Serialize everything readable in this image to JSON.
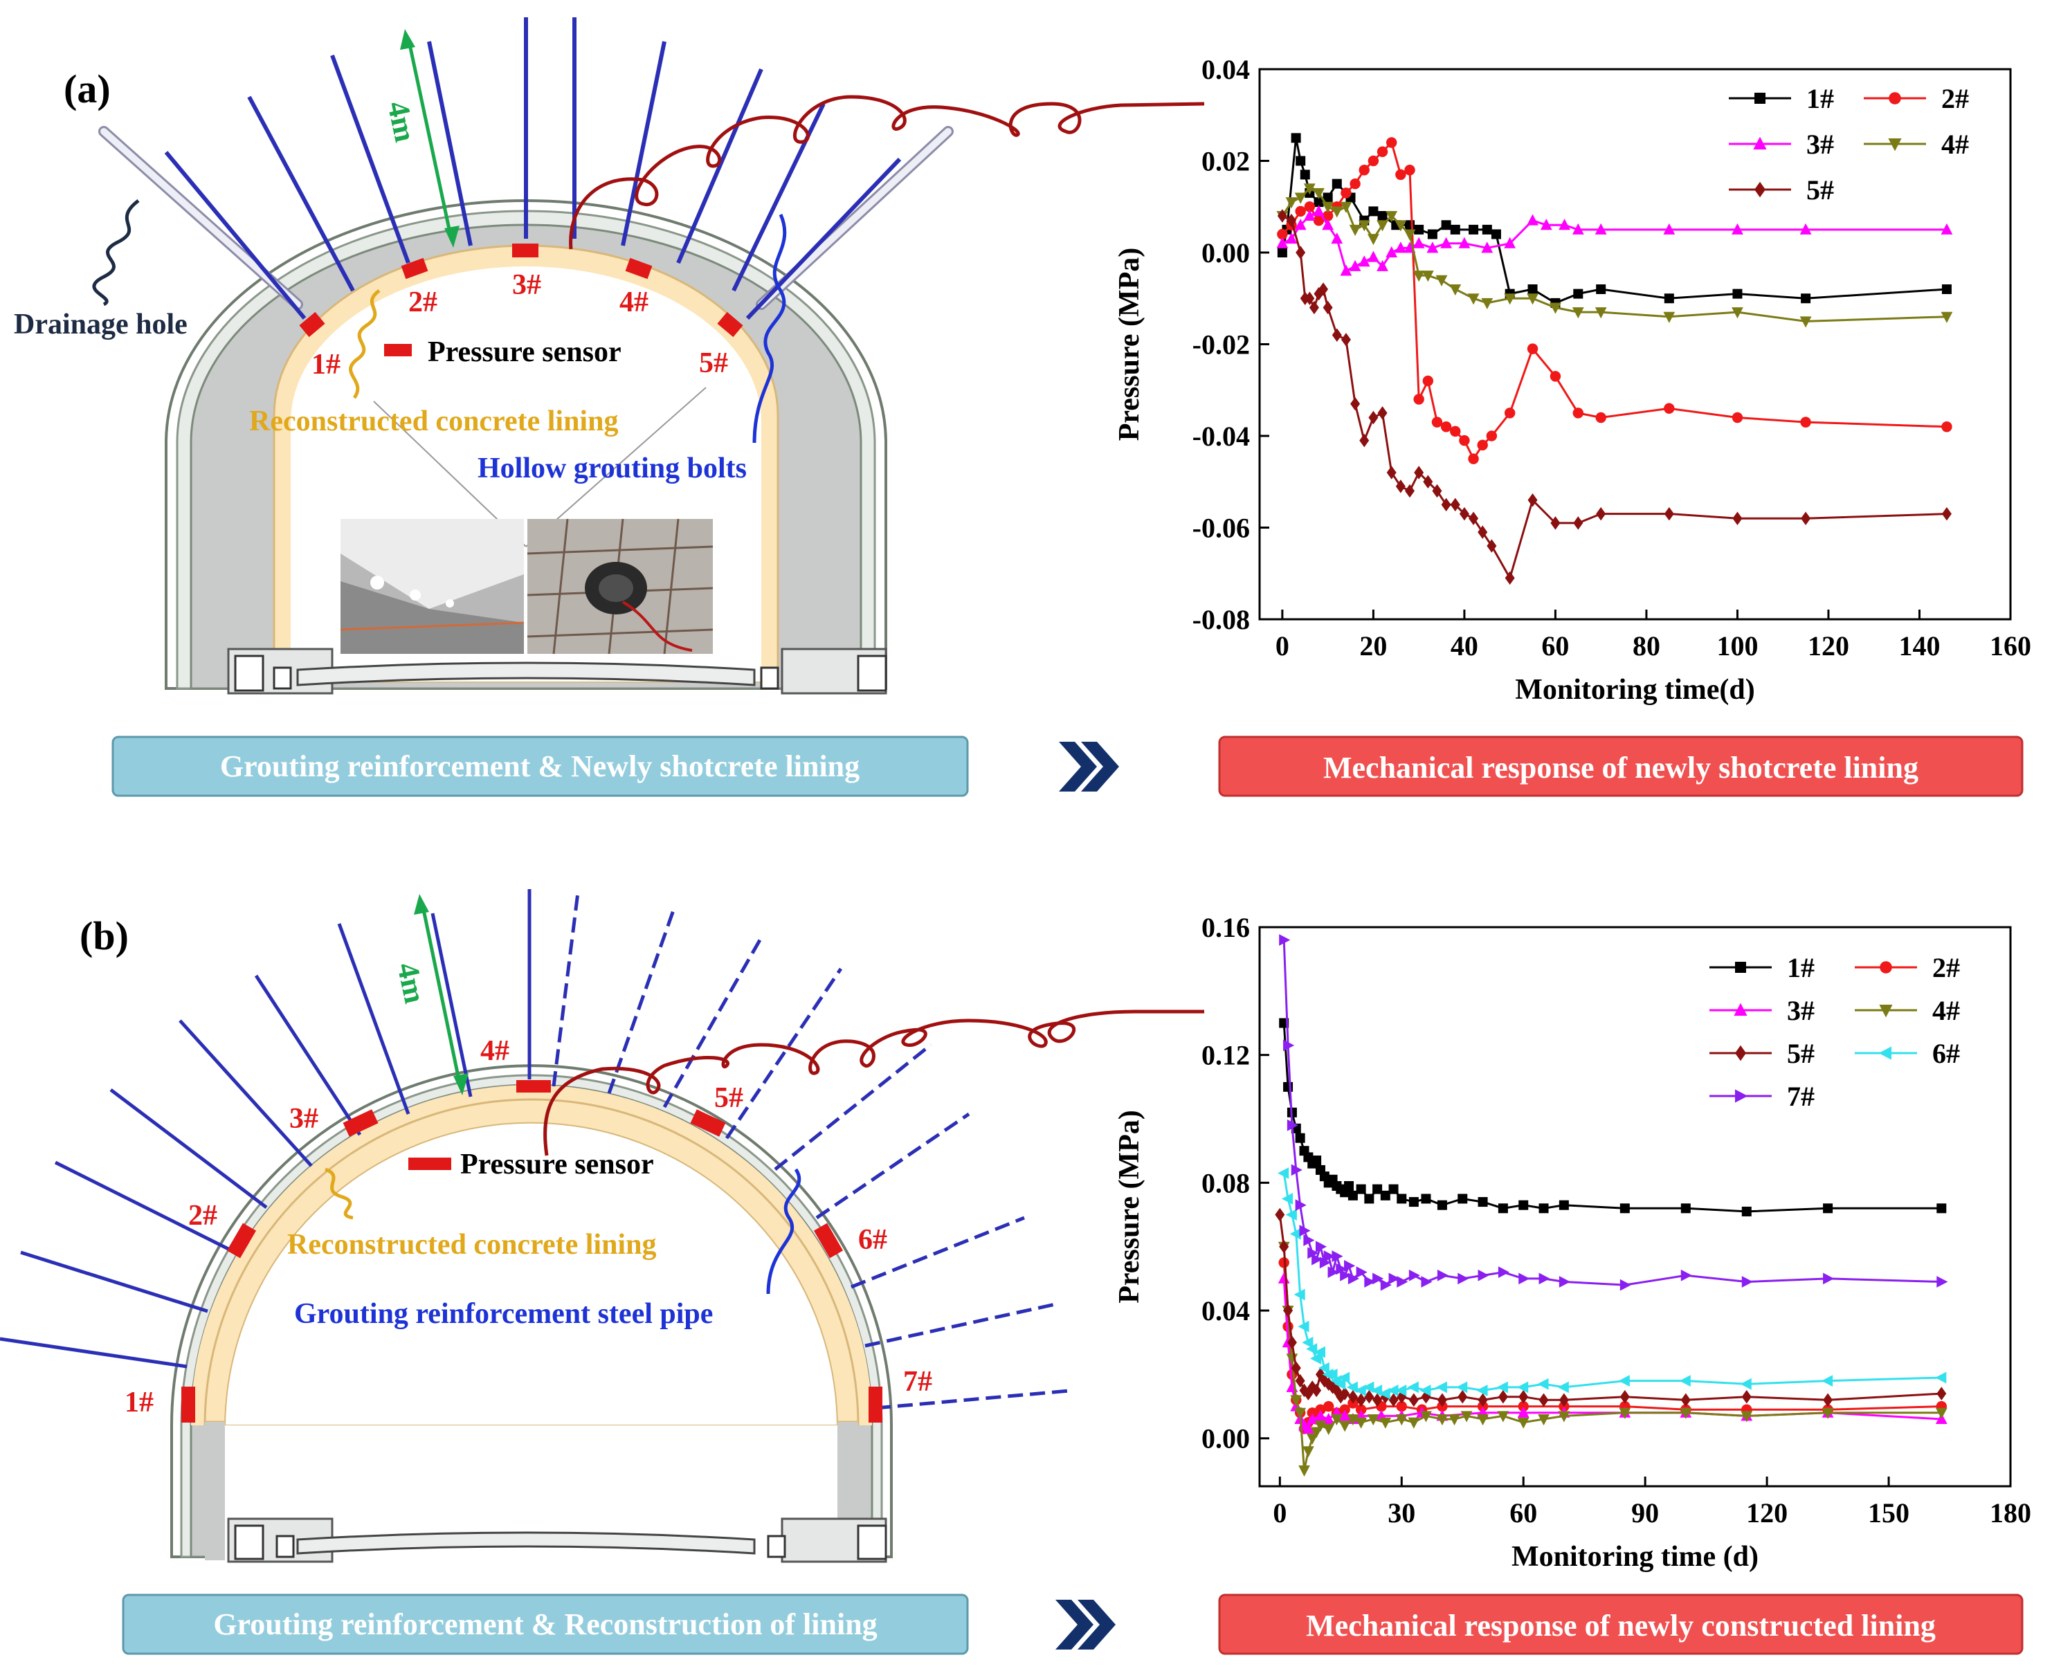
{
  "panel_a": {
    "label": "(a)",
    "diagram": {
      "length_label": "4m",
      "drainage_label": "Drainage hole",
      "sensor_label": "Pressure sensor",
      "lining_label": "Reconstructed concrete lining",
      "bolt_label": "Hollow grouting bolts",
      "sensor_ids": [
        "1#",
        "2#",
        "3#",
        "4#",
        "5#"
      ]
    },
    "left_banner": "Grouting reinforcement & Newly shotcrete lining",
    "right_banner": "Mechanical response of newly shotcrete lining"
  },
  "panel_b": {
    "label": "(b)",
    "diagram": {
      "length_label": "4m",
      "sensor_label": "Pressure sensor",
      "lining_label": "Reconstructed concrete lining",
      "pipe_label": "Grouting reinforcement steel pipe",
      "sensor_ids": [
        "1#",
        "2#",
        "3#",
        "4#",
        "5#",
        "6#",
        "7#"
      ]
    },
    "left_banner": "Grouting reinforcement & Reconstruction of lining",
    "right_banner": "Mechanical response of newly constructed lining"
  },
  "colors": {
    "banner_blue": "#93cddd",
    "banner_red": "#f05050",
    "arrow_navy": "#13306b",
    "lining": "#fce5b8",
    "bolt": "#2b2fb5",
    "wire": "#a11010",
    "green": "#1aa84c",
    "label_red": "#e01818",
    "label_gold": "#e0a81a",
    "label_blue": "#1d33d6"
  },
  "chart_data": [
    {
      "type": "line",
      "title": "",
      "xlabel": "Monitoring time(d)",
      "ylabel": "Pressure (MPa)",
      "xlim": [
        -5,
        160
      ],
      "ylim": [
        -0.08,
        0.04
      ],
      "xticks": [
        0,
        20,
        40,
        60,
        80,
        100,
        120,
        140,
        160
      ],
      "yticks": [
        -0.08,
        -0.06,
        -0.04,
        -0.02,
        0.0,
        0.02,
        0.04
      ],
      "ytick_labels": [
        "-0.08",
        "-0.06",
        "-0.04",
        "-0.02",
        "0.00",
        "0.02",
        "0.04"
      ],
      "legend_position": "top-right",
      "legend_cols": 2,
      "series": [
        {
          "name": "1#",
          "color": "#000000",
          "marker": "square",
          "x": [
            0,
            1,
            3,
            4,
            5,
            6,
            8,
            10,
            12,
            15,
            18,
            20,
            22,
            25,
            28,
            30,
            33,
            36,
            38,
            42,
            45,
            47,
            50,
            55,
            60,
            65,
            70,
            85,
            100,
            115,
            146
          ],
          "y": [
            0.0,
            0.005,
            0.025,
            0.02,
            0.017,
            0.013,
            0.011,
            0.012,
            0.015,
            0.012,
            0.007,
            0.009,
            0.008,
            0.006,
            0.006,
            0.005,
            0.004,
            0.006,
            0.005,
            0.005,
            0.005,
            0.004,
            -0.009,
            -0.008,
            -0.011,
            -0.009,
            -0.008,
            -0.01,
            -0.009,
            -0.01,
            -0.008
          ]
        },
        {
          "name": "2#",
          "color": "#f01818",
          "marker": "circle",
          "x": [
            0,
            2,
            4,
            6,
            8,
            10,
            12,
            14,
            16,
            18,
            20,
            22,
            24,
            26,
            28,
            30,
            32,
            34,
            36,
            38,
            40,
            42,
            44,
            46,
            50,
            55,
            60,
            65,
            70,
            85,
            100,
            115,
            146
          ],
          "y": [
            0.004,
            0.006,
            0.009,
            0.01,
            0.007,
            0.008,
            0.01,
            0.013,
            0.015,
            0.018,
            0.02,
            0.022,
            0.024,
            0.017,
            0.018,
            -0.032,
            -0.028,
            -0.037,
            -0.038,
            -0.039,
            -0.041,
            -0.045,
            -0.042,
            -0.04,
            -0.035,
            -0.021,
            -0.027,
            -0.035,
            -0.036,
            -0.034,
            -0.036,
            -0.037,
            -0.038
          ]
        },
        {
          "name": "3#",
          "color": "#ff00ff",
          "marker": "triangle-up",
          "x": [
            0,
            2,
            4,
            6,
            8,
            10,
            12,
            14,
            16,
            18,
            20,
            22,
            24,
            26,
            28,
            30,
            33,
            36,
            40,
            45,
            50,
            55,
            58,
            62,
            65,
            70,
            85,
            100,
            115,
            146
          ],
          "y": [
            0.002,
            0.003,
            0.006,
            0.008,
            0.009,
            0.006,
            0.003,
            -0.004,
            -0.003,
            -0.002,
            -0.001,
            -0.003,
            0.0,
            0.001,
            0.001,
            0.002,
            0.001,
            0.002,
            0.002,
            0.001,
            0.002,
            0.007,
            0.006,
            0.006,
            0.005,
            0.005,
            0.005,
            0.005,
            0.005,
            0.005
          ]
        },
        {
          "name": "4#",
          "color": "#7b7b16",
          "marker": "triangle-down",
          "x": [
            0,
            2,
            4,
            6,
            8,
            10,
            12,
            14,
            16,
            18,
            20,
            22,
            24,
            26,
            28,
            30,
            32,
            35,
            38,
            42,
            45,
            50,
            55,
            60,
            65,
            70,
            85,
            100,
            115,
            146
          ],
          "y": [
            0.008,
            0.011,
            0.012,
            0.014,
            0.013,
            0.01,
            0.009,
            0.01,
            0.005,
            0.006,
            0.003,
            0.006,
            0.008,
            0.006,
            0.004,
            -0.005,
            -0.005,
            -0.006,
            -0.008,
            -0.01,
            -0.011,
            -0.01,
            -0.01,
            -0.012,
            -0.013,
            -0.013,
            -0.014,
            -0.013,
            -0.015,
            -0.014
          ]
        },
        {
          "name": "5#",
          "color": "#8b1010",
          "marker": "diamond",
          "x": [
            0,
            2,
            4,
            5,
            6,
            7,
            8,
            9,
            10,
            12,
            14,
            16,
            18,
            20,
            22,
            24,
            26,
            28,
            30,
            32,
            34,
            36,
            38,
            40,
            42,
            44,
            46,
            50,
            55,
            60,
            65,
            70,
            85,
            100,
            115,
            146
          ],
          "y": [
            0.008,
            0.007,
            0.0,
            -0.01,
            -0.01,
            -0.012,
            -0.009,
            -0.008,
            -0.012,
            -0.018,
            -0.019,
            -0.033,
            -0.041,
            -0.036,
            -0.035,
            -0.048,
            -0.051,
            -0.052,
            -0.048,
            -0.05,
            -0.052,
            -0.055,
            -0.055,
            -0.057,
            -0.058,
            -0.061,
            -0.064,
            -0.071,
            -0.054,
            -0.059,
            -0.059,
            -0.057,
            -0.057,
            -0.058,
            -0.058,
            -0.057
          ]
        }
      ]
    },
    {
      "type": "line",
      "title": "",
      "xlabel": "Monitoring time (d)",
      "ylabel": "Pressure (MPa)",
      "xlim": [
        -5,
        180
      ],
      "ylim": [
        -0.015,
        0.16
      ],
      "xticks": [
        0,
        30,
        60,
        90,
        120,
        150,
        180
      ],
      "yticks": [
        0.0,
        0.04,
        0.08,
        0.12,
        0.16
      ],
      "ytick_labels": [
        "0.00",
        "0.04",
        "0.08",
        "0.12",
        "0.16"
      ],
      "legend_position": "top-right",
      "legend_cols": 2,
      "series": [
        {
          "name": "1#",
          "color": "#000000",
          "marker": "square",
          "x": [
            1,
            2,
            3,
            4,
            5,
            6,
            7,
            8,
            9,
            10,
            11,
            12,
            13,
            14,
            15,
            16,
            17,
            18,
            20,
            22,
            24,
            26,
            28,
            30,
            33,
            36,
            40,
            45,
            50,
            55,
            60,
            65,
            70,
            85,
            100,
            115,
            135,
            163
          ],
          "y": [
            0.13,
            0.11,
            0.102,
            0.097,
            0.094,
            0.09,
            0.088,
            0.086,
            0.087,
            0.084,
            0.082,
            0.08,
            0.081,
            0.079,
            0.078,
            0.077,
            0.079,
            0.076,
            0.078,
            0.075,
            0.078,
            0.076,
            0.078,
            0.075,
            0.074,
            0.075,
            0.073,
            0.075,
            0.074,
            0.072,
            0.073,
            0.072,
            0.073,
            0.072,
            0.072,
            0.071,
            0.072,
            0.072
          ]
        },
        {
          "name": "2#",
          "color": "#f01818",
          "marker": "circle",
          "x": [
            1,
            2,
            3,
            4,
            5,
            6,
            7,
            8,
            9,
            10,
            12,
            14,
            16,
            18,
            20,
            25,
            30,
            35,
            40,
            50,
            60,
            70,
            85,
            100,
            115,
            135,
            163
          ],
          "y": [
            0.055,
            0.035,
            0.02,
            0.012,
            0.008,
            0.003,
            0.005,
            0.008,
            0.006,
            0.009,
            0.01,
            0.008,
            0.009,
            0.011,
            0.009,
            0.01,
            0.01,
            0.009,
            0.01,
            0.01,
            0.01,
            0.01,
            0.01,
            0.009,
            0.009,
            0.009,
            0.01
          ]
        },
        {
          "name": "3#",
          "color": "#ff00ff",
          "marker": "triangle-up",
          "x": [
            1,
            2,
            3,
            4,
            5,
            6,
            7,
            8,
            10,
            12,
            14,
            16,
            18,
            20,
            25,
            30,
            35,
            40,
            50,
            60,
            70,
            85,
            100,
            115,
            135,
            163
          ],
          "y": [
            0.05,
            0.03,
            0.016,
            0.01,
            0.006,
            0.004,
            0.003,
            0.006,
            0.007,
            0.006,
            0.008,
            0.007,
            0.006,
            0.007,
            0.007,
            0.007,
            0.008,
            0.007,
            0.008,
            0.008,
            0.008,
            0.008,
            0.008,
            0.007,
            0.008,
            0.006
          ]
        },
        {
          "name": "4#",
          "color": "#7b7b16",
          "marker": "triangle-down",
          "x": [
            1,
            2,
            3,
            4,
            5,
            6,
            7,
            8,
            9,
            10,
            12,
            14,
            16,
            18,
            20,
            23,
            26,
            30,
            33,
            36,
            40,
            43,
            46,
            50,
            55,
            60,
            65,
            70,
            85,
            100,
            115,
            135,
            163
          ],
          "y": [
            0.06,
            0.04,
            0.025,
            0.012,
            0.008,
            -0.01,
            -0.004,
            0.0,
            0.002,
            0.004,
            0.003,
            0.006,
            0.004,
            0.006,
            0.005,
            0.006,
            0.005,
            0.006,
            0.005,
            0.007,
            0.006,
            0.006,
            0.007,
            0.006,
            0.007,
            0.005,
            0.006,
            0.007,
            0.008,
            0.008,
            0.007,
            0.008,
            0.008
          ]
        },
        {
          "name": "5#",
          "color": "#8b1010",
          "marker": "diamond",
          "x": [
            0,
            1,
            2,
            3,
            4,
            5,
            6,
            7,
            8,
            9,
            10,
            11,
            12,
            13,
            14,
            15,
            16,
            18,
            20,
            22,
            24,
            26,
            28,
            30,
            33,
            36,
            40,
            45,
            50,
            55,
            60,
            65,
            70,
            85,
            100,
            115,
            135,
            163
          ],
          "y": [
            0.07,
            0.06,
            0.04,
            0.03,
            0.022,
            0.018,
            0.015,
            0.014,
            0.016,
            0.015,
            0.02,
            0.018,
            0.017,
            0.016,
            0.015,
            0.013,
            0.014,
            0.013,
            0.012,
            0.013,
            0.012,
            0.013,
            0.012,
            0.013,
            0.012,
            0.013,
            0.012,
            0.013,
            0.012,
            0.013,
            0.013,
            0.012,
            0.012,
            0.013,
            0.012,
            0.013,
            0.012,
            0.014
          ]
        },
        {
          "name": "6#",
          "color": "#33e0ee",
          "marker": "triangle-left",
          "x": [
            1,
            2,
            3,
            4,
            5,
            6,
            7,
            8,
            9,
            10,
            11,
            12,
            13,
            14,
            15,
            16,
            18,
            20,
            22,
            24,
            26,
            28,
            30,
            33,
            36,
            40,
            45,
            50,
            55,
            60,
            65,
            70,
            85,
            100,
            115,
            135,
            163
          ],
          "y": [
            0.083,
            0.075,
            0.07,
            0.064,
            0.045,
            0.035,
            0.03,
            0.028,
            0.025,
            0.027,
            0.022,
            0.02,
            0.02,
            0.018,
            0.017,
            0.019,
            0.016,
            0.015,
            0.016,
            0.015,
            0.014,
            0.015,
            0.015,
            0.016,
            0.015,
            0.016,
            0.016,
            0.015,
            0.016,
            0.016,
            0.017,
            0.016,
            0.018,
            0.018,
            0.017,
            0.018,
            0.019
          ]
        },
        {
          "name": "7#",
          "color": "#8a1ff0",
          "marker": "triangle-right",
          "x": [
            1,
            2,
            3,
            4,
            5,
            6,
            7,
            8,
            9,
            10,
            11,
            12,
            13,
            14,
            15,
            16,
            17,
            18,
            20,
            22,
            24,
            26,
            28,
            30,
            33,
            36,
            40,
            45,
            50,
            55,
            60,
            65,
            70,
            85,
            100,
            115,
            135,
            163
          ],
          "y": [
            0.156,
            0.123,
            0.098,
            0.084,
            0.073,
            0.065,
            0.062,
            0.058,
            0.056,
            0.06,
            0.055,
            0.057,
            0.052,
            0.057,
            0.053,
            0.051,
            0.054,
            0.05,
            0.052,
            0.049,
            0.05,
            0.048,
            0.05,
            0.049,
            0.051,
            0.049,
            0.051,
            0.05,
            0.051,
            0.052,
            0.05,
            0.05,
            0.049,
            0.048,
            0.051,
            0.049,
            0.05,
            0.049
          ]
        }
      ]
    }
  ]
}
